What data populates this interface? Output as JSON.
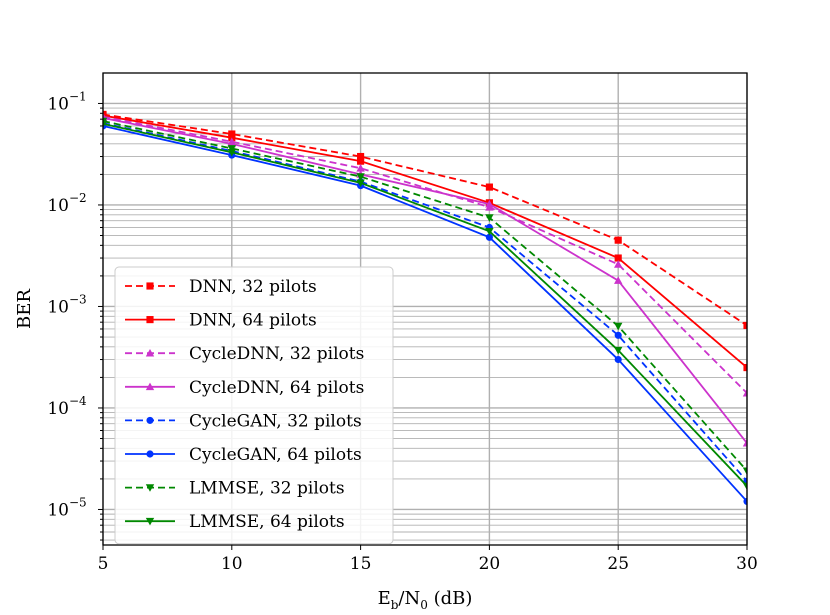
{
  "chart_data": {
    "type": "line",
    "title": "",
    "xlabel": "E_b/N_0 (dB)",
    "xlabel_parts": {
      "base": "E",
      "sub1": "b",
      "mid": "/N",
      "sub2": "0",
      "tail": " (dB)"
    },
    "ylabel": "BER",
    "xlim": [
      5,
      30
    ],
    "ylim_exponent": [
      -5.35,
      -0.7
    ],
    "yscale": "log",
    "grid": true,
    "legend_position": "lower-left",
    "x_ticks": [
      5,
      10,
      15,
      20,
      25,
      30
    ],
    "x_tick_labels": [
      "5",
      "10",
      "15",
      "20",
      "25",
      "30"
    ],
    "y_ticks": [
      {
        "exp": -1,
        "base": "10",
        "sup": "−1"
      },
      {
        "exp": -2,
        "base": "10",
        "sup": "−2"
      },
      {
        "exp": -3,
        "base": "10",
        "sup": "−3"
      },
      {
        "exp": -4,
        "base": "10",
        "sup": "−4"
      },
      {
        "exp": -5,
        "base": "10",
        "sup": "−5"
      }
    ],
    "x": [
      5,
      10,
      15,
      20,
      25,
      30
    ],
    "series": [
      {
        "name": "DNN, 32 pilots",
        "color": "#ff0000",
        "dash": true,
        "marker": "square",
        "values": [
          0.078,
          0.05,
          0.03,
          0.015,
          0.0045,
          0.00065
        ]
      },
      {
        "name": "DNN, 64 pilots",
        "color": "#ff0000",
        "dash": false,
        "marker": "square",
        "values": [
          0.076,
          0.046,
          0.027,
          0.0105,
          0.003,
          0.00025
        ]
      },
      {
        "name": "CycleDNN, 32 pilots",
        "color": "#cc33cc",
        "dash": true,
        "marker": "triangle-up",
        "values": [
          0.074,
          0.042,
          0.023,
          0.0095,
          0.0026,
          0.00014
        ]
      },
      {
        "name": "CycleDNN, 64 pilots",
        "color": "#cc33cc",
        "dash": false,
        "marker": "triangle-up",
        "values": [
          0.072,
          0.04,
          0.02,
          0.0102,
          0.0018,
          4.5e-05
        ]
      },
      {
        "name": "CycleGAN, 32 pilots",
        "color": "#0033ff",
        "dash": true,
        "marker": "circle",
        "values": [
          0.064,
          0.034,
          0.017,
          0.006,
          0.00052,
          1.9e-05
        ]
      },
      {
        "name": "CycleGAN, 64 pilots",
        "color": "#0033ff",
        "dash": false,
        "marker": "circle",
        "values": [
          0.06,
          0.031,
          0.0155,
          0.0048,
          0.0003,
          1.2e-05
        ]
      },
      {
        "name": "LMMSE, 32 pilots",
        "color": "#008800",
        "dash": true,
        "marker": "triangle-down",
        "values": [
          0.067,
          0.036,
          0.019,
          0.0075,
          0.00064,
          2.4e-05
        ]
      },
      {
        "name": "LMMSE, 64 pilots",
        "color": "#008800",
        "dash": false,
        "marker": "triangle-down",
        "values": [
          0.063,
          0.033,
          0.0165,
          0.0055,
          0.00037,
          1.7e-05
        ]
      }
    ]
  }
}
